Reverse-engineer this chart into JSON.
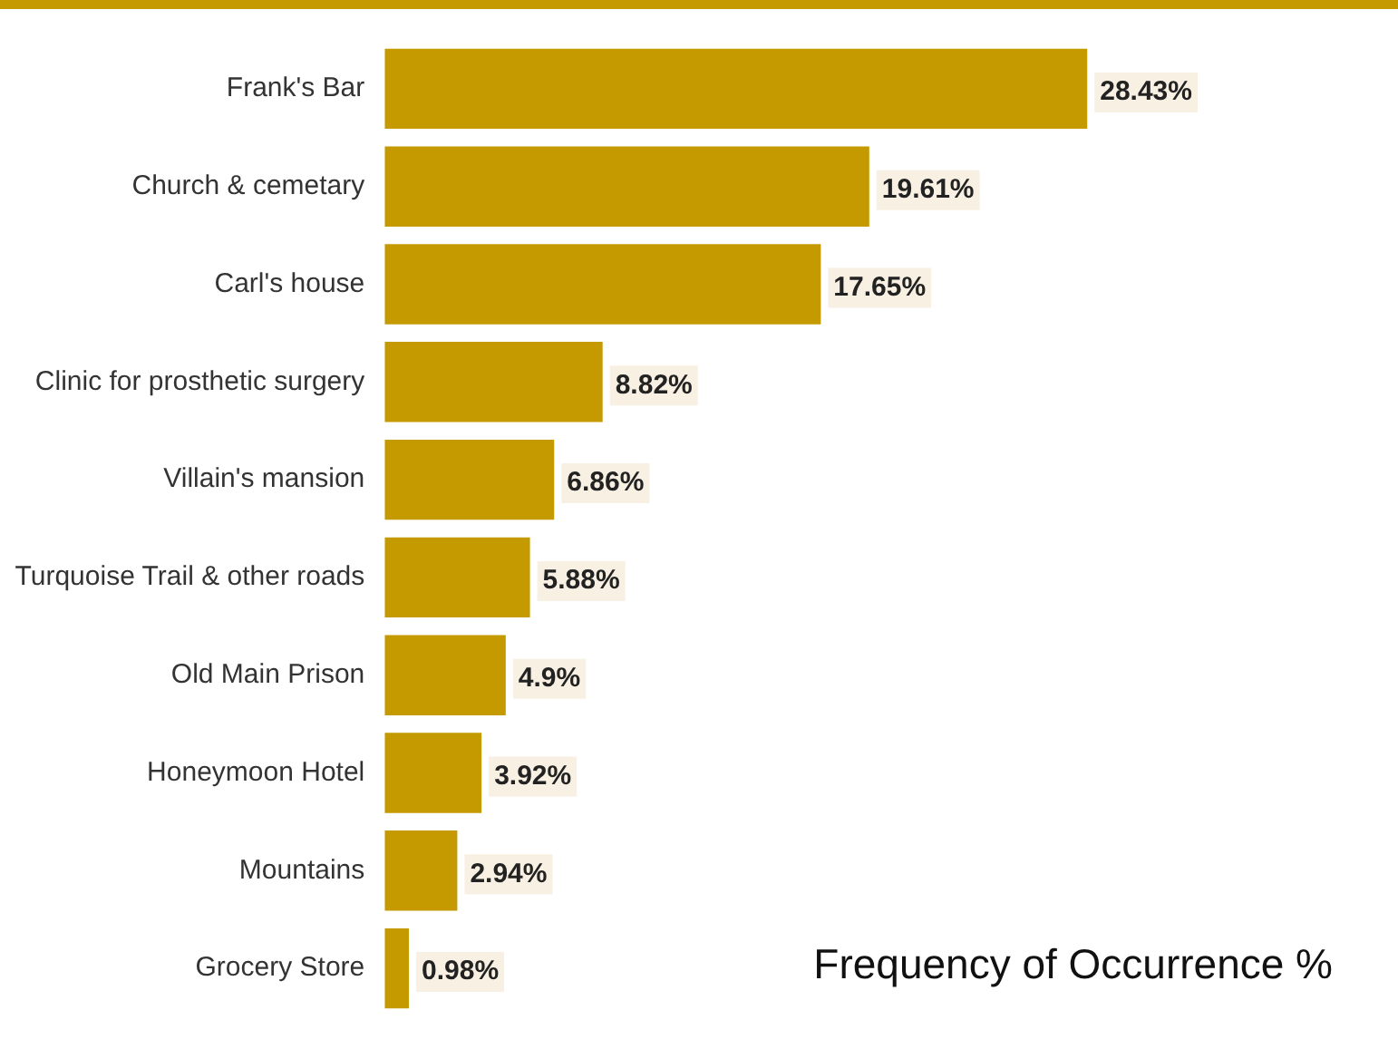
{
  "chart_data": {
    "type": "bar",
    "orientation": "horizontal",
    "categories": [
      "Frank's Bar",
      "Church & cemetary",
      "Carl's house",
      "Clinic for prosthetic surgery",
      "Villain's mansion",
      "Turquoise Trail & other roads",
      "Old Main Prison",
      "Honeymoon Hotel",
      "Mountains",
      "Grocery Store"
    ],
    "values": [
      28.43,
      19.61,
      17.65,
      8.82,
      6.86,
      5.88,
      4.9,
      3.92,
      2.94,
      0.98
    ],
    "value_labels": [
      "28.43%",
      "19.61%",
      "17.65%",
      "8.82%",
      "6.86%",
      "5.88%",
      "4.9%",
      "3.92%",
      "2.94%",
      "0.98%"
    ],
    "color": "#c49a00",
    "legend": false,
    "tick_labels": "y",
    "annotations": [
      "Frequency of Occurrence %"
    ]
  }
}
